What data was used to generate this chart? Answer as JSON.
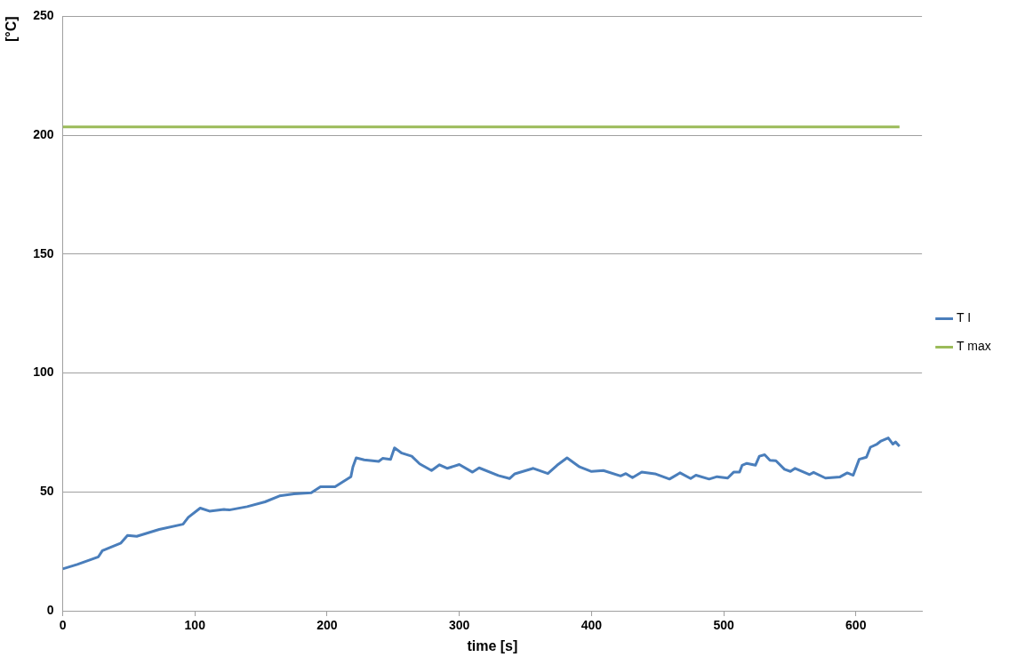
{
  "chart_data": {
    "type": "line",
    "xlabel": "time [s]",
    "ylabel": "[°C]",
    "xlim": [
      0,
      650
    ],
    "xticks": [
      0,
      100,
      200,
      300,
      400,
      500,
      600
    ],
    "ylim": [
      0,
      250
    ],
    "yticks": [
      0,
      50,
      100,
      150,
      200,
      250
    ],
    "grid": "y",
    "legend": "right",
    "marker": "none",
    "line_style": "solid",
    "series": [
      {
        "name": "T I",
        "color": "#4a7ebb",
        "x": [
          0,
          11,
          27,
          30,
          44,
          49,
          56,
          73,
          91,
          95,
          104,
          111,
          122,
          126,
          139.5,
          153,
          164,
          175,
          188,
          195,
          206,
          218,
          219.5,
          222,
          228,
          239,
          242,
          248,
          251,
          256.5,
          264,
          270,
          279,
          285,
          291,
          300,
          310,
          315,
          329.5,
          338,
          342,
          356,
          367,
          374,
          381.5,
          391,
          400,
          409,
          422,
          426,
          431,
          438,
          448,
          459,
          467,
          475,
          479,
          489,
          495,
          503,
          507.5,
          512,
          514,
          517.5,
          524,
          527,
          531,
          535,
          539.5,
          546,
          550.5,
          554,
          565,
          568,
          577,
          588,
          593.5,
          598,
          602.5,
          608,
          611,
          616,
          619,
          624.5,
          628,
          630,
          633
        ],
        "values": [
          17.6,
          19.5,
          22.7,
          25.3,
          28.5,
          31.7,
          31.3,
          34.2,
          36.4,
          39.3,
          43.2,
          41.9,
          42.6,
          42.4,
          43.8,
          45.8,
          48.3,
          49.2,
          49.6,
          52.2,
          52.2,
          56.4,
          60.5,
          64.3,
          63.5,
          62.8,
          64.1,
          63.7,
          68.5,
          66.3,
          65,
          61.8,
          59,
          61.4,
          59.9,
          61.5,
          58.3,
          60.1,
          56.9,
          55.6,
          57.6,
          59.9,
          57.7,
          61.2,
          64.3,
          60.5,
          58.6,
          59,
          56.7,
          57.7,
          56,
          58.3,
          57.6,
          55.4,
          58,
          55.6,
          57,
          55.4,
          56.4,
          55.8,
          58.3,
          58.3,
          61.2,
          62,
          61.2,
          65,
          65.6,
          63.3,
          63.1,
          59.5,
          58.6,
          59.9,
          57.3,
          58.2,
          55.8,
          56.3,
          58,
          57,
          63.7,
          64.6,
          68.8,
          70.1,
          71.4,
          72.7,
          70.1,
          71,
          69.2
        ]
      },
      {
        "name": "T max",
        "color": "#9bbb59",
        "x": [
          0,
          633
        ],
        "values": [
          203.5,
          203.5
        ]
      }
    ]
  }
}
